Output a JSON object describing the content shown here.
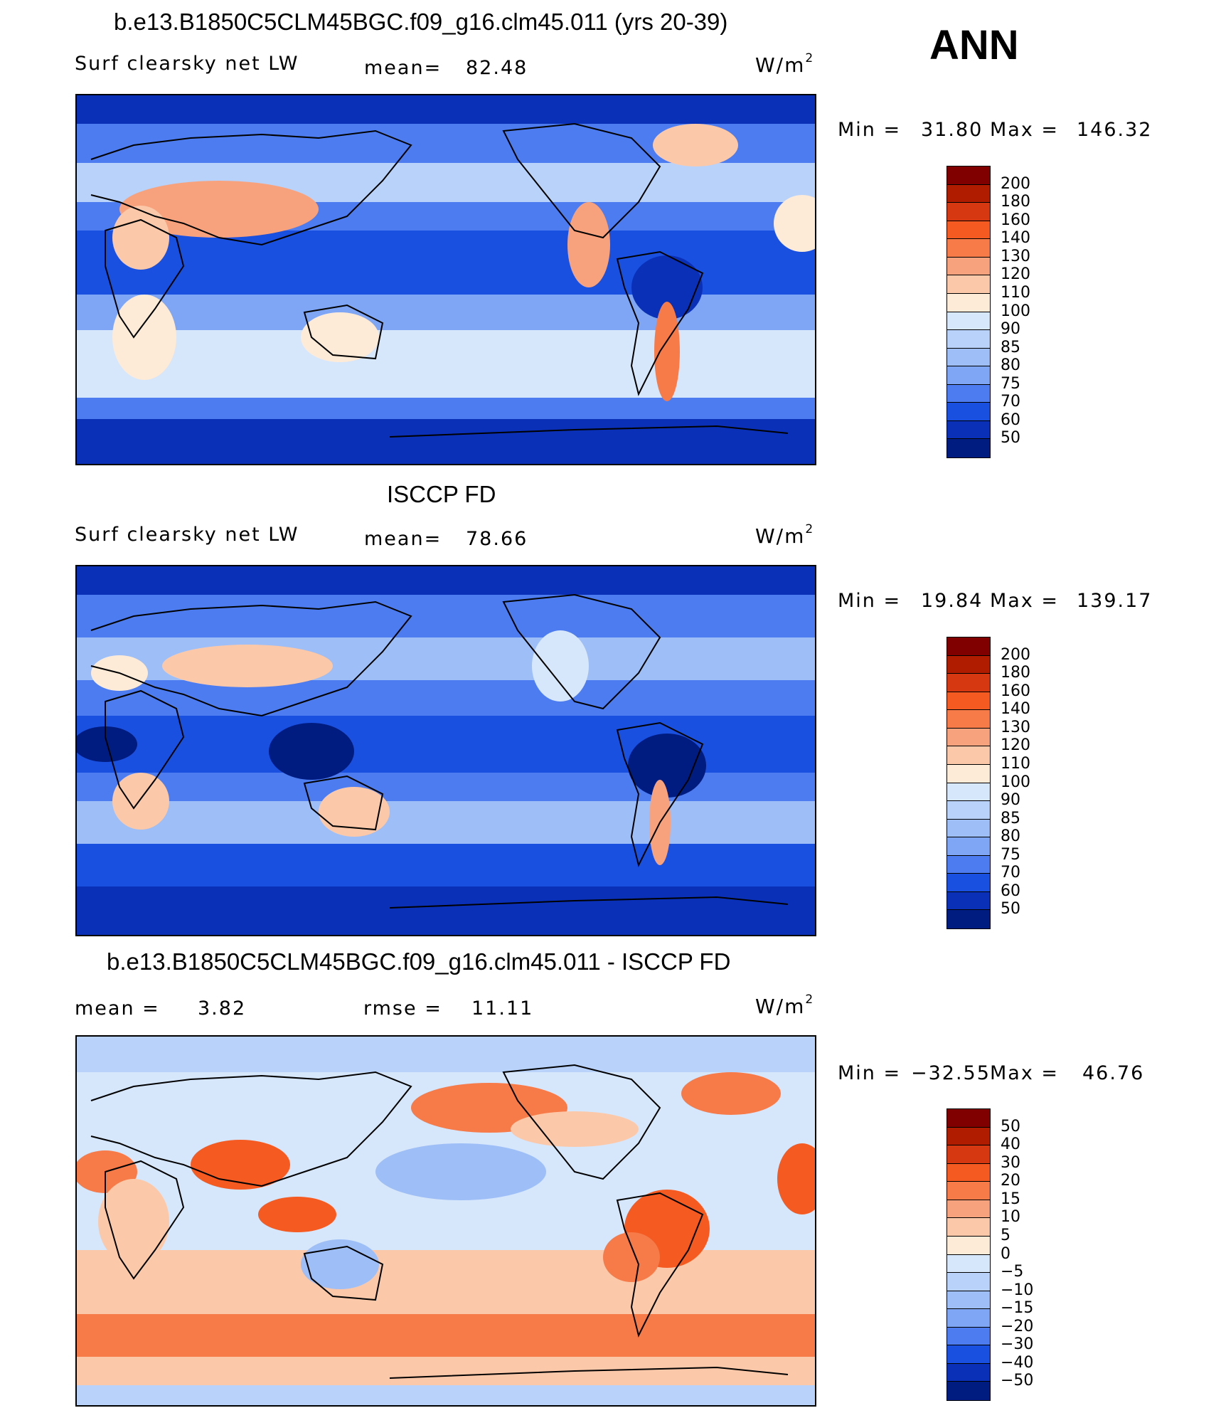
{
  "season": "ANN",
  "panels": [
    {
      "title": "b.e13.B1850C5CLM45BGC.f09_g16.clm45.011 (yrs 20-39)",
      "variable": "Surf clearsky net LW",
      "stat_label": "mean=",
      "stat_value": "82.48",
      "units_base": "W/m",
      "units_exp": "2",
      "minmax": {
        "min_label": "Min =",
        "min_value": "31.80",
        "max_label": "Max =",
        "max_value": "146.32"
      },
      "colorbar_labels": [
        "200",
        "180",
        "160",
        "140",
        "130",
        "120",
        "110",
        "100",
        "90",
        "85",
        "80",
        "75",
        "70",
        "60",
        "50"
      ]
    },
    {
      "title": "ISCCP FD",
      "variable": "Surf clearsky net LW",
      "stat_label": "mean=",
      "stat_value": "78.66",
      "units_base": "W/m",
      "units_exp": "2",
      "minmax": {
        "min_label": "Min =",
        "min_value": "19.84",
        "max_label": "Max =",
        "max_value": "139.17"
      },
      "colorbar_labels": [
        "200",
        "180",
        "160",
        "140",
        "130",
        "120",
        "110",
        "100",
        "90",
        "85",
        "80",
        "75",
        "70",
        "60",
        "50"
      ]
    },
    {
      "title": "b.e13.B1850C5CLM45BGC.f09_g16.clm45.011 - ISCCP FD",
      "stat_label": "mean =",
      "stat_value": "3.82",
      "stat2_label": "rmse =",
      "stat2_value": "11.11",
      "units_base": "W/m",
      "units_exp": "2",
      "minmax": {
        "min_label": "Min =",
        "min_value": "−32.55",
        "max_label": "Max =",
        "max_value": "46.76"
      },
      "colorbar_labels": [
        "50",
        "40",
        "30",
        "20",
        "15",
        "10",
        "5",
        "0",
        "−5",
        "−10",
        "−15",
        "−20",
        "−30",
        "−40",
        "−50"
      ]
    }
  ],
  "colors": {
    "abs_scale": [
      "#800000",
      "#b01c00",
      "#d63812",
      "#f55a21",
      "#f77a49",
      "#f8a27d",
      "#fbc9a9",
      "#fdebd8",
      "#d6e6fb",
      "#b8d2fa",
      "#9dbef7",
      "#7ea6f5",
      "#4d7cf0",
      "#1a50e0",
      "#0a30b8",
      "#001c80"
    ],
    "diff_scale": [
      "#800000",
      "#b01c00",
      "#d63812",
      "#f55a21",
      "#f77a49",
      "#f8a27d",
      "#fbc9a9",
      "#fdebd8",
      "#d6e6fb",
      "#b8d2fa",
      "#9dbef7",
      "#7ea6f5",
      "#4d7cf0",
      "#1a50e0",
      "#0a30b8",
      "#001c80"
    ]
  }
}
